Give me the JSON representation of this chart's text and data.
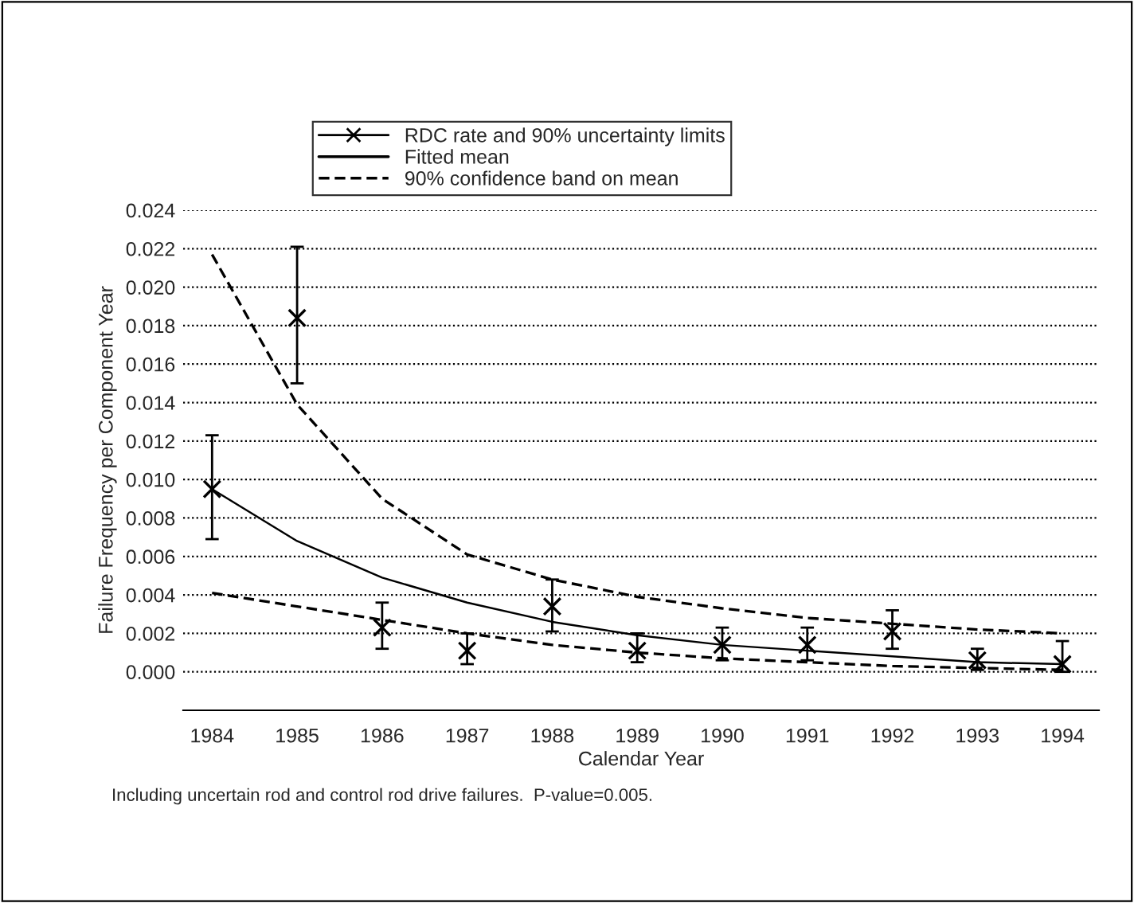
{
  "chart_data": {
    "type": "line",
    "xlabel": "Calendar Year",
    "ylabel": "Failure Frequency per Component Year",
    "x": [
      1984,
      1985,
      1986,
      1987,
      1988,
      1989,
      1990,
      1991,
      1992,
      1993,
      1994
    ],
    "series": [
      {
        "name": "RDC rate and 90% uncertainty limits",
        "type": "scatter",
        "color": "#000000",
        "marker": "cross",
        "values": [
          0.0095,
          0.0184,
          0.0023,
          0.0011,
          0.0034,
          0.0011,
          0.0014,
          0.0014,
          0.0021,
          0.0006,
          0.0004
        ],
        "errors": [
          [
            0.0069,
            0.0123
          ],
          [
            0.015,
            0.0221
          ],
          [
            0.0012,
            0.0036
          ],
          [
            0.0004,
            0.002
          ],
          [
            0.0021,
            0.0048
          ],
          [
            0.0005,
            0.002
          ],
          [
            0.0006,
            0.0023
          ],
          [
            0.0006,
            0.0023
          ],
          [
            0.0012,
            0.0032
          ],
          [
            0.0001,
            0.0012
          ],
          [
            0.0,
            0.0016
          ]
        ]
      },
      {
        "name": "Fitted mean",
        "color": "#000000",
        "line_style": "solid",
        "values": [
          0.0095,
          0.0068,
          0.0049,
          0.0036,
          0.0026,
          0.0019,
          0.0014,
          0.0011,
          0.0008,
          0.0005,
          0.0004
        ]
      },
      {
        "name": "90% confidence band on mean",
        "color": "#000000",
        "line_style": "dashed",
        "values": [
          0.0217,
          0.0139,
          0.009,
          0.0061,
          0.0048,
          0.0039,
          0.0033,
          0.0028,
          0.0025,
          0.0022,
          0.002
        ]
      },
      {
        "color": "#000000",
        "line_style": "dashed",
        "values": [
          0.0041,
          0.0034,
          0.0027,
          0.002,
          0.0014,
          0.001,
          0.0007,
          0.0005,
          0.0003,
          0.0002,
          0.0001
        ]
      }
    ],
    "xlim": [
      1983.66,
      1994.43
    ],
    "xticks": [
      1984,
      1985,
      1986,
      1987,
      1988,
      1989,
      1990,
      1991,
      1992,
      1993,
      1994
    ],
    "ylim": [
      -0.002,
      0.024
    ],
    "yticks": [
      {
        "value": 0,
        "label": "0.000"
      },
      {
        "value": 0.002,
        "label": "0.002"
      },
      {
        "value": 0.004,
        "label": "0.004"
      },
      {
        "value": 0.006,
        "label": "0.006"
      },
      {
        "value": 0.008,
        "label": "0.008"
      },
      {
        "value": 0.01,
        "label": "0.010"
      },
      {
        "value": 0.012,
        "label": "0.012"
      },
      {
        "value": 0.014,
        "label": "0.014"
      },
      {
        "value": 0.016,
        "label": "0.016"
      },
      {
        "value": 0.018,
        "label": "0.018"
      },
      {
        "value": 0.02,
        "label": "0.020"
      },
      {
        "value": 0.022,
        "label": "0.022"
      },
      {
        "value": 0.024,
        "label": "0.024"
      }
    ],
    "grid": "y",
    "legend": "top",
    "annotations": [
      "Including uncertain rod and control rod drive failures.  P-value=0.005."
    ]
  }
}
